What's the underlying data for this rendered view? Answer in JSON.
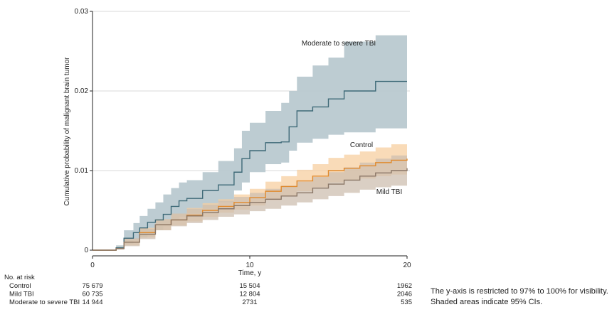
{
  "chart_data": {
    "type": "line",
    "title": "",
    "xlabel": "Time, y",
    "ylabel": "Cumulative probability of malignant brain tumor",
    "xlim": [
      0,
      20
    ],
    "ylim": [
      0,
      0.03
    ],
    "x_ticks": [
      "0",
      "10",
      "20"
    ],
    "y_ticks": [
      "0",
      "0.01",
      "0.02",
      "0.03"
    ],
    "y_tick_values": [
      0,
      0.01,
      0.02,
      0.03
    ],
    "x_tick_values": [
      0,
      10,
      20
    ],
    "grid": "horizontal",
    "series": [
      {
        "name": "Moderate to severe TBI",
        "color": "#3f6a78",
        "band_color": "#b9c9d0",
        "x": [
          0,
          1.5,
          2.0,
          2.6,
          3.0,
          3.5,
          4.0,
          4.5,
          5.0,
          5.5,
          6.0,
          7.0,
          8.0,
          9.0,
          9.5,
          10.0,
          11.0,
          12.0,
          12.5,
          13.0,
          14.0,
          15.0,
          16.0,
          18.0,
          20.0
        ],
        "y": [
          0,
          0.0003,
          0.0015,
          0.0022,
          0.0028,
          0.0035,
          0.0038,
          0.0045,
          0.0055,
          0.0062,
          0.0065,
          0.0075,
          0.0082,
          0.0098,
          0.0115,
          0.0125,
          0.0135,
          0.0136,
          0.0155,
          0.0175,
          0.018,
          0.019,
          0.02,
          0.0212,
          0.0212
        ],
        "ci_lower": [
          0,
          0.0001,
          0.0008,
          0.0012,
          0.0016,
          0.002,
          0.0025,
          0.003,
          0.0038,
          0.0042,
          0.0046,
          0.0052,
          0.006,
          0.0075,
          0.0085,
          0.0098,
          0.0108,
          0.011,
          0.0125,
          0.0135,
          0.014,
          0.0145,
          0.0148,
          0.0153,
          0.0153
        ],
        "ci_upper": [
          0,
          0.0006,
          0.0025,
          0.0034,
          0.0043,
          0.0052,
          0.006,
          0.007,
          0.0078,
          0.0085,
          0.0088,
          0.0098,
          0.0112,
          0.0128,
          0.015,
          0.016,
          0.0175,
          0.0185,
          0.02,
          0.0218,
          0.0232,
          0.0242,
          0.0262,
          0.027,
          0.027
        ]
      },
      {
        "name": "Control",
        "color": "#e08a2e",
        "band_color": "#f7cfa0",
        "x": [
          0,
          1.5,
          2.0,
          3.0,
          4.0,
          5.0,
          6.0,
          7.0,
          8.0,
          9.0,
          10.0,
          11.0,
          12.0,
          13.0,
          14.0,
          15.0,
          16.0,
          17.0,
          18.0,
          19.0,
          20.0
        ],
        "y": [
          0,
          0.0002,
          0.001,
          0.0022,
          0.0032,
          0.0038,
          0.0044,
          0.005,
          0.0055,
          0.006,
          0.0066,
          0.0074,
          0.008,
          0.0087,
          0.0093,
          0.01,
          0.0103,
          0.0106,
          0.011,
          0.0113,
          0.0115
        ],
        "ci_lower": [
          0,
          0.0001,
          0.0006,
          0.0016,
          0.0025,
          0.0031,
          0.0036,
          0.0042,
          0.0047,
          0.0051,
          0.0056,
          0.0063,
          0.0068,
          0.0074,
          0.0079,
          0.0085,
          0.0088,
          0.009,
          0.0093,
          0.0095,
          0.0097
        ],
        "ci_upper": [
          0,
          0.0004,
          0.0014,
          0.0028,
          0.0039,
          0.0046,
          0.0053,
          0.0059,
          0.0064,
          0.007,
          0.0077,
          0.0086,
          0.0093,
          0.0101,
          0.0108,
          0.0116,
          0.012,
          0.0124,
          0.0129,
          0.0133,
          0.0135
        ]
      },
      {
        "name": "Mild TBI",
        "color": "#8a7767",
        "band_color": "#cdbfb0",
        "x": [
          0,
          1.5,
          2.0,
          3.0,
          4.0,
          5.0,
          6.0,
          7.0,
          8.0,
          9.0,
          10.0,
          11.0,
          12.0,
          13.0,
          14.0,
          15.0,
          16.0,
          17.0,
          18.0,
          19.0,
          20.0
        ],
        "y": [
          0,
          0.0002,
          0.001,
          0.002,
          0.0032,
          0.0038,
          0.0043,
          0.0047,
          0.0052,
          0.0056,
          0.006,
          0.0064,
          0.0068,
          0.0072,
          0.0078,
          0.0083,
          0.0088,
          0.0093,
          0.0097,
          0.01,
          0.0103
        ],
        "ci_lower": [
          0,
          0.0001,
          0.0005,
          0.0014,
          0.0025,
          0.003,
          0.0034,
          0.0038,
          0.0042,
          0.0045,
          0.0049,
          0.0052,
          0.0056,
          0.006,
          0.0064,
          0.0068,
          0.0072,
          0.0076,
          0.0079,
          0.0081,
          0.0083
        ],
        "ci_upper": [
          0,
          0.0004,
          0.0015,
          0.0027,
          0.0039,
          0.0046,
          0.0052,
          0.0057,
          0.0062,
          0.0067,
          0.0072,
          0.0077,
          0.0081,
          0.0086,
          0.0092,
          0.0098,
          0.0104,
          0.011,
          0.0115,
          0.0119,
          0.0123
        ]
      }
    ],
    "series_label_positions": [
      "above",
      "above",
      "below"
    ],
    "risk_table": {
      "title": "No. at risk",
      "time_points": [
        0,
        10,
        20
      ],
      "rows": [
        {
          "label": "Control",
          "values": [
            "75 679",
            "15 504",
            "1962"
          ]
        },
        {
          "label": "Mild TBI",
          "values": [
            "60 735",
            "12 804",
            "2046"
          ]
        },
        {
          "label": "Moderate to severe TBI",
          "values": [
            "14 944",
            "2731",
            "535"
          ]
        }
      ]
    }
  },
  "notes": {
    "line1": "The y-axis is restricted to 97% to 100% for visibility.",
    "line2": "Shaded areas indicate 95% CIs."
  }
}
